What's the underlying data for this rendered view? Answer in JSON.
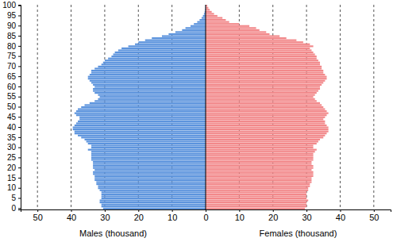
{
  "chart_data": {
    "type": "bar",
    "orientation": "horizontal",
    "grid": true,
    "categories": [
      0,
      null,
      null,
      null,
      null,
      5,
      null,
      null,
      null,
      null,
      10,
      null,
      null,
      null,
      null,
      15,
      null,
      null,
      null,
      null,
      20,
      null,
      null,
      null,
      null,
      25,
      null,
      null,
      null,
      null,
      30,
      null,
      null,
      null,
      null,
      35,
      null,
      null,
      null,
      null,
      40,
      null,
      null,
      null,
      null,
      45,
      null,
      null,
      null,
      null,
      50,
      null,
      null,
      null,
      null,
      55,
      null,
      null,
      null,
      null,
      60,
      null,
      null,
      null,
      null,
      65,
      null,
      null,
      null,
      null,
      70,
      null,
      null,
      null,
      null,
      75,
      null,
      null,
      null,
      null,
      80,
      null,
      null,
      null,
      null,
      85,
      null,
      null,
      null,
      null,
      90,
      null,
      null,
      null,
      null,
      95,
      null,
      null,
      null,
      null,
      100
    ],
    "xlim": [
      0,
      55
    ],
    "xticks": [
      0,
      10,
      20,
      30,
      40,
      50
    ],
    "series": [
      {
        "name": "Males (thousand)",
        "color": "#5b93dd",
        "values": [
          30.5,
          31,
          31,
          31.5,
          31.5,
          31,
          31,
          31,
          31,
          31.5,
          32,
          32,
          32.5,
          32.5,
          33,
          33,
          33,
          33.5,
          33.5,
          33,
          33.5,
          33.5,
          33.5,
          33.5,
          34,
          34,
          34,
          34,
          34,
          35,
          34,
          34,
          35,
          35.5,
          36,
          37,
          38,
          39,
          39,
          39.5,
          39.5,
          39,
          38.5,
          38,
          37.5,
          37.5,
          38.5,
          39,
          38.5,
          38,
          37,
          36,
          34.5,
          33,
          32,
          31.5,
          32,
          33,
          33.5,
          33.5,
          33,
          33.5,
          34,
          34.5,
          35,
          35,
          34.5,
          34,
          34,
          33,
          32,
          31,
          30.5,
          30,
          29,
          28,
          27.5,
          27,
          26,
          25,
          23,
          21,
          20,
          18,
          16,
          13,
          11,
          9,
          7,
          6,
          4.5,
          3.5,
          2.5,
          1.8,
          1.2,
          0.8,
          0.5,
          0.3,
          0.2,
          0.1,
          0.1
        ]
      },
      {
        "name": "Females (thousand)",
        "color": "#f2888a",
        "values": [
          29.5,
          30,
          30,
          30,
          30.5,
          30,
          30,
          30,
          30,
          30.5,
          30.5,
          31,
          31,
          31.5,
          31.5,
          31.5,
          32,
          32,
          32,
          31.5,
          32,
          32,
          31.5,
          31.5,
          32,
          32,
          32,
          32,
          32.5,
          33,
          32,
          32,
          33,
          33.5,
          34,
          35,
          35.5,
          36,
          36.5,
          36.5,
          36.5,
          36,
          35.5,
          35.5,
          35,
          35.5,
          36,
          36.5,
          36,
          35.5,
          35,
          34.5,
          34,
          33,
          32.5,
          32,
          32.5,
          33,
          33.5,
          34,
          34,
          34.5,
          35,
          35.5,
          36,
          36,
          35.5,
          35,
          35,
          34.5,
          34.5,
          34,
          34,
          33.5,
          33,
          33,
          32.5,
          32,
          31.5,
          31,
          32,
          31,
          29,
          27,
          24,
          22,
          19,
          18,
          16,
          15,
          13,
          10,
          7,
          6,
          5,
          3.5,
          2.5,
          1.8,
          1.2,
          0.8,
          0.5
        ]
      }
    ]
  }
}
